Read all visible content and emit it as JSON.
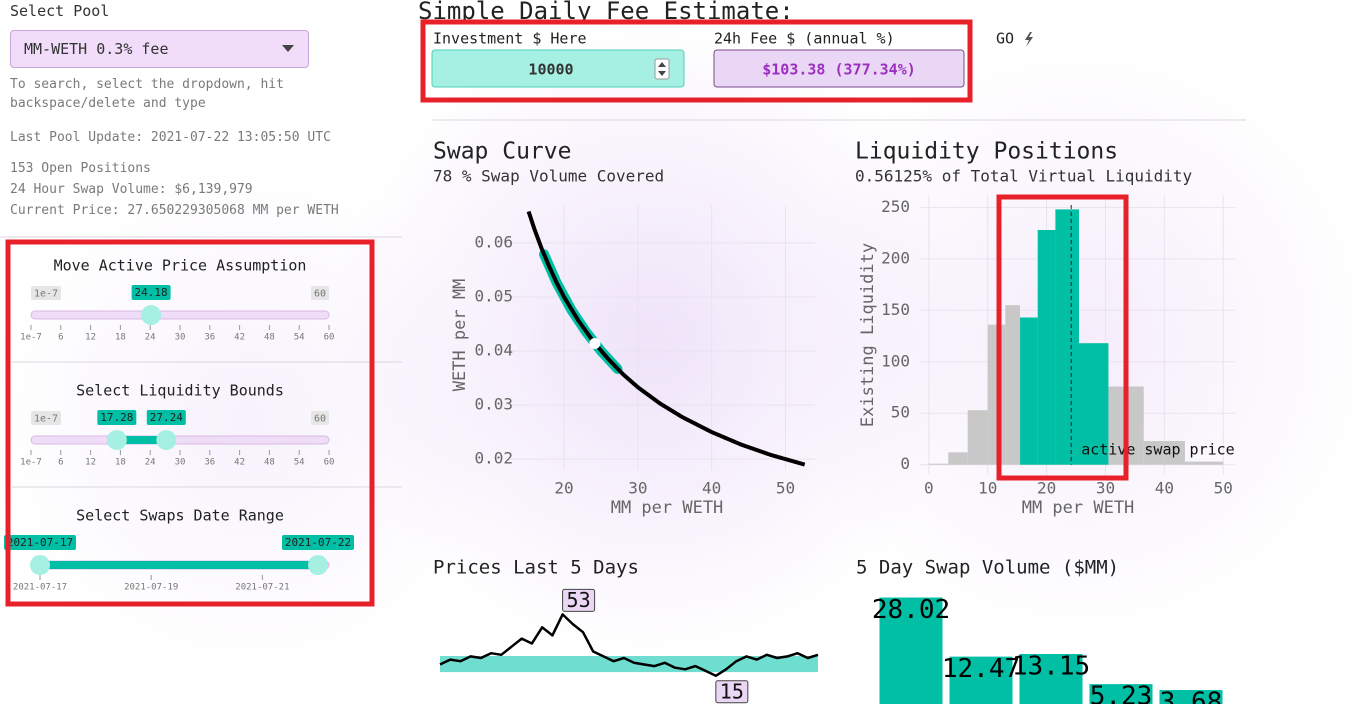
{
  "sidebar": {
    "pool_label": "Select Pool",
    "pool_value": "MM-WETH 0.3% fee",
    "hint": "To search, select the dropdown, hit backspace/delete and type",
    "last_update": "Last Pool Update: 2021-07-22 13:05:50 UTC",
    "stats": [
      "153 Open Positions",
      "24 Hour Swap Volume: $6,139,979",
      "Current Price: 27.650229305068 MM per WETH"
    ],
    "sliders": [
      {
        "title": "Move Active Price Assumption",
        "range": [
          1e-07,
          60
        ],
        "ticks": [
          1e-07,
          6,
          12,
          18,
          24,
          30,
          36,
          42,
          48,
          54,
          60
        ],
        "handles": [
          24.18
        ]
      },
      {
        "title": "Select Liquidity Bounds",
        "range": [
          1e-07,
          60
        ],
        "ticks": [
          1e-07,
          6,
          12,
          18,
          24,
          30,
          36,
          42,
          48,
          54,
          60
        ],
        "handles": [
          17.28,
          27.24
        ]
      },
      {
        "title": "Select Swaps Date Range",
        "ticks": [
          "2021-07-17",
          "2021-07-19",
          "2021-07-21"
        ],
        "handles": [
          "2021-07-17",
          "2021-07-22"
        ]
      }
    ]
  },
  "fee_estimate": {
    "title": "Simple Daily Fee Estimate:",
    "investment_label": "Investment $ Here",
    "investment_value": 10000,
    "fee_label": "24h Fee $ (annual %)",
    "fee_value": "$103.38 (377.34%)",
    "button": "GO"
  },
  "chart_data": [
    {
      "type": "scatter",
      "title": "Swap Curve",
      "subtitle": "78 % Swap Volume Covered",
      "x_label": "MM per WETH",
      "y_label": "WETH per MM",
      "xlim": [
        12,
        54
      ],
      "ylim": [
        0.018,
        0.067
      ],
      "xticks": [
        20,
        30,
        40,
        50
      ],
      "yticks": [
        0.02,
        0.03,
        0.04,
        0.05,
        0.06
      ],
      "grid": true,
      "curve": {
        "color": "#000000",
        "x": [
          15.2,
          16,
          17,
          18,
          19,
          20,
          22,
          24,
          26,
          28,
          30,
          33,
          36,
          40,
          44,
          48,
          52.6
        ],
        "y": [
          0.0658,
          0.0625,
          0.0588,
          0.0556,
          0.0526,
          0.05,
          0.0455,
          0.0417,
          0.0385,
          0.0357,
          0.0333,
          0.0303,
          0.0278,
          0.025,
          0.0227,
          0.0208,
          0.019
        ]
      },
      "range_band": {
        "color": "#00bfa5",
        "x": [
          17.28,
          19,
          21,
          23,
          25,
          27.24
        ],
        "y": [
          0.0579,
          0.0526,
          0.0476,
          0.0435,
          0.04,
          0.0367
        ]
      },
      "active_point": {
        "x": 24.18,
        "y": 0.0414,
        "color": "#ffffff"
      }
    },
    {
      "type": "histogram",
      "title": "Liquidity Positions",
      "subtitle": "0.56125% of Total Virtual Liquidity",
      "x_label": "MM per WETH",
      "y_label": "Existing Liquidity",
      "xlim": [
        -1.5,
        52
      ],
      "ylim": [
        -10,
        262
      ],
      "xticks": [
        0,
        10,
        20,
        30,
        40,
        50
      ],
      "yticks": [
        0,
        50,
        100,
        150,
        200,
        250
      ],
      "grid": true,
      "bins": [
        0,
        3.3,
        6.6,
        10,
        13,
        15.5,
        18.5,
        21.5,
        25.5,
        30.5,
        33.5,
        36.5,
        40,
        43.5,
        50
      ],
      "series": [
        {
          "color": "#c8c8c8",
          "values": [
            1,
            12,
            53,
            136,
            155,
            143,
            228,
            248,
            118,
            76,
            76,
            23,
            23,
            3
          ]
        },
        {
          "color": "#00bfa5",
          "values": [
            null,
            null,
            null,
            null,
            null,
            143,
            228,
            248,
            118,
            null,
            null,
            null,
            null,
            null
          ]
        }
      ],
      "vline": 24.18,
      "annotation": "active swap price"
    },
    {
      "type": "line",
      "title": "Prices Last 5 Days",
      "ylim": [
        0,
        65
      ],
      "color": "#000000",
      "band": [
        17.28,
        27.24
      ],
      "band_color": "#6fddd0",
      "values": [
        22,
        25,
        24,
        27,
        26,
        29,
        28,
        33,
        38,
        35,
        45,
        40,
        53,
        47,
        42,
        30,
        27,
        24,
        26,
        23,
        22,
        21,
        23,
        20,
        19,
        21,
        18,
        15,
        19,
        24,
        27,
        25,
        28,
        26,
        27,
        29,
        26,
        28
      ]
    },
    {
      "type": "bar",
      "title": "5 Day Swap Volume ($MM)",
      "ylim": [
        0,
        30
      ],
      "color": "#00bfa5",
      "values": [
        28.02,
        12.47,
        13.15,
        5.23,
        3.68
      ]
    }
  ]
}
